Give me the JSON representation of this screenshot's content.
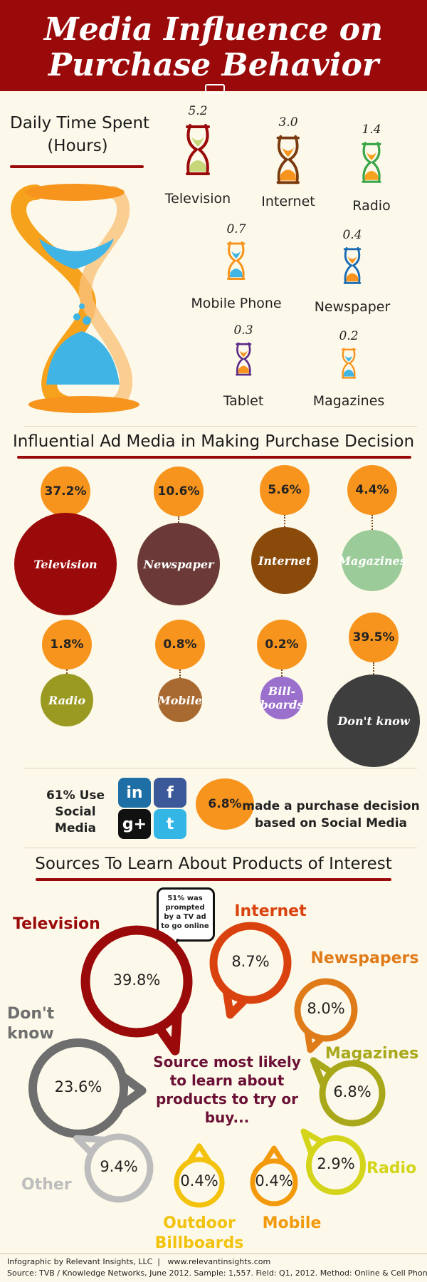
{
  "header": {
    "title_line1": "Media Influence on",
    "title_line2": "Purchase Behavior"
  },
  "daily_time": {
    "title_line1": "Daily Time Spent",
    "title_line2": "(Hours)",
    "items": [
      {
        "label": "Television",
        "value": "5.2",
        "color": "#9b0a0a",
        "sand": "#c7d77a"
      },
      {
        "label": "Internet",
        "value": "3.0",
        "color": "#7a3b0f",
        "sand": "#f7941d"
      },
      {
        "label": "Radio",
        "value": "1.4",
        "color": "#3aa64a",
        "sand": "#f7a21d"
      },
      {
        "label": "Mobile Phone",
        "value": "0.7",
        "color": "#f7941d",
        "sand": "#3fb4e5"
      },
      {
        "label": "Newspaper",
        "value": "0.4",
        "color": "#1a6db5",
        "sand": "#f7941d"
      },
      {
        "label": "Tablet",
        "value": "0.3",
        "color": "#5b2a86",
        "sand": "#f7941d"
      },
      {
        "label": "Magazines",
        "value": "0.2",
        "color": "#f7941d",
        "sand": "#3fb4e5"
      }
    ]
  },
  "influential": {
    "title": "Influential Ad Media in Making Purchase Decision",
    "items": [
      {
        "label": "Television",
        "value": "37.2%",
        "color": "#9b0a0a"
      },
      {
        "label": "Newspaper",
        "value": "10.6%",
        "color": "#6b3a38"
      },
      {
        "label": "Internet",
        "value": "5.6%",
        "color": "#8a4a0a"
      },
      {
        "label": "Magazines",
        "value": "4.4%",
        "color": "#9ccb9a"
      },
      {
        "label": "Radio",
        "value": "1.8%",
        "color": "#9a9a22"
      },
      {
        "label": "Mobile",
        "value": "0.8%",
        "color": "#a86a30"
      },
      {
        "label": "Bill-\nboards",
        "value": "0.2%",
        "color": "#9b6fcc"
      },
      {
        "label": "Don't know",
        "value": "39.5%",
        "color": "#3e3e3e"
      }
    ]
  },
  "social": {
    "use_text": "61% Use Social Media",
    "decision_pct": "6.8%",
    "decision_text": "made a purchase decision based on Social Media",
    "icons": [
      "linkedin-icon",
      "facebook-icon",
      "google-plus-icon",
      "twitter-icon"
    ],
    "icon_labels": [
      "in",
      "f",
      "g+",
      "t"
    ]
  },
  "sources": {
    "title": "Sources To Learn About Products of Interest",
    "center_text": "Source most likely to learn about products to try or buy...",
    "callout": "51% was prompted by a TV ad to go online",
    "items": [
      {
        "label": "Television",
        "value": "39.8%",
        "color": "#9b0a0a"
      },
      {
        "label": "Internet",
        "value": "8.7%",
        "color": "#d9420e"
      },
      {
        "label": "Newspapers",
        "value": "8.0%",
        "color": "#e07b1a"
      },
      {
        "label": "Don't know",
        "value": "23.6%",
        "color": "#6e6e6e"
      },
      {
        "label": "Magazines",
        "value": "6.8%",
        "color": "#a8a81a"
      },
      {
        "label": "Radio",
        "value": "2.9%",
        "color": "#d4d41a"
      },
      {
        "label": "Other",
        "value": "9.4%",
        "color": "#bdbdbd"
      },
      {
        "label": "Outdoor Billboards",
        "value": "0.4%",
        "color": "#f2c20c"
      },
      {
        "label": "Mobile",
        "value": "0.4%",
        "color": "#f29a0c"
      }
    ]
  },
  "footer": {
    "line1": "Infographic by Relevant Insights, LLC  |   www.relevantinsights.com",
    "line2": "Source: TVB / Knowledge Networks, June 2012. Sample: 1,557. Field: Q1, 2012. Method: Online & Cell Phones"
  },
  "chart_data": [
    {
      "type": "bar",
      "title": "Daily Time Spent",
      "ylabel": "(Hours)",
      "categories": [
        "Television",
        "Internet",
        "Radio",
        "Mobile Phone",
        "Newspaper",
        "Tablet",
        "Magazines"
      ],
      "values": [
        5.2,
        3.0,
        1.4,
        0.7,
        0.4,
        0.3,
        0.2
      ]
    },
    {
      "type": "bar",
      "title": "Influential Ad Media in Making Purchase Decision",
      "categories": [
        "Television",
        "Newspaper",
        "Internet",
        "Magazines",
        "Radio",
        "Mobile",
        "Billboards",
        "Don't know"
      ],
      "values": [
        37.2,
        10.6,
        5.6,
        4.4,
        1.8,
        0.8,
        0.2,
        39.5
      ]
    },
    {
      "type": "bar",
      "title": "Sources To Learn About Products of Interest",
      "categories": [
        "Television",
        "Internet",
        "Newspapers",
        "Don't know",
        "Magazines",
        "Radio",
        "Other",
        "Outdoor Billboards",
        "Mobile"
      ],
      "values": [
        39.8,
        8.7,
        8.0,
        23.6,
        6.8,
        2.9,
        9.4,
        0.4,
        0.4
      ]
    }
  ]
}
